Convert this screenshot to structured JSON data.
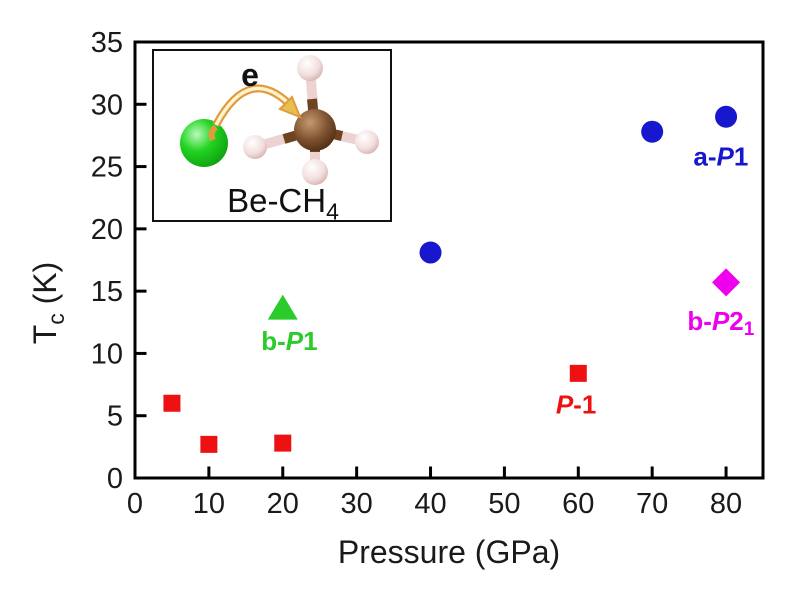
{
  "figure": {
    "background": "#ffffff"
  },
  "chart_data": {
    "type": "scatter",
    "title": "",
    "xlabel": "Pressure (GPa)",
    "ylabel_text": "Tc (K)",
    "ylabel_parts": {
      "main": "T",
      "sub": "c",
      "rest": " (K)"
    },
    "xlim": [
      0,
      85
    ],
    "ylim": [
      0,
      35
    ],
    "xticks": [
      0,
      10,
      20,
      30,
      40,
      50,
      60,
      70,
      80
    ],
    "yticks": [
      0,
      5,
      10,
      15,
      20,
      25,
      30,
      35
    ],
    "grid": false,
    "legend_position": "inline-annotations",
    "series": [
      {
        "name": "P-1",
        "marker": "square",
        "color": "#ee1111",
        "points": [
          [
            5,
            6.0
          ],
          [
            10,
            2.7
          ],
          [
            20,
            2.8
          ],
          [
            60,
            8.4
          ]
        ]
      },
      {
        "name": "b-P1",
        "marker": "triangle",
        "color": "#2bcb2b",
        "points": [
          [
            20,
            13.6
          ]
        ]
      },
      {
        "name": "a-P1",
        "marker": "circle",
        "color": "#1717ce",
        "points": [
          [
            40,
            18.1
          ],
          [
            70,
            27.8
          ],
          [
            80,
            29.0
          ]
        ]
      },
      {
        "name": "b-P21",
        "marker": "diamond",
        "color": "#ee00ee",
        "points": [
          [
            80,
            15.7
          ]
        ]
      }
    ],
    "annotations": [
      {
        "id": "a-P1",
        "pre": "a-",
        "italic": "P",
        "post": "1",
        "sub": "",
        "x": 79.3,
        "y": 25.8,
        "color": "#1717ce"
      },
      {
        "id": "b-P21",
        "pre": "b-",
        "italic": "P",
        "post": "2",
        "sub": "1",
        "x": 79.3,
        "y": 12.6,
        "color": "#ee00ee"
      },
      {
        "id": "P-1",
        "pre": "",
        "italic": "P",
        "post": "-1",
        "sub": "",
        "x": 59.7,
        "y": 5.9,
        "color": "#ee1111"
      },
      {
        "id": "b-P1",
        "pre": "b-",
        "italic": "P",
        "post": "1",
        "sub": "",
        "x": 20.9,
        "y": 11.0,
        "color": "#2bcb2b"
      }
    ]
  },
  "inset": {
    "electron_label": "e",
    "molecule_label": {
      "text": "Be-CH",
      "sub": "4"
    },
    "colors": {
      "be_atom": "#1ec81e",
      "carbon_atom": "#7a4e2c",
      "hydrogen_atom": "#f0dbdb",
      "arrow": "#df9b3e"
    }
  }
}
